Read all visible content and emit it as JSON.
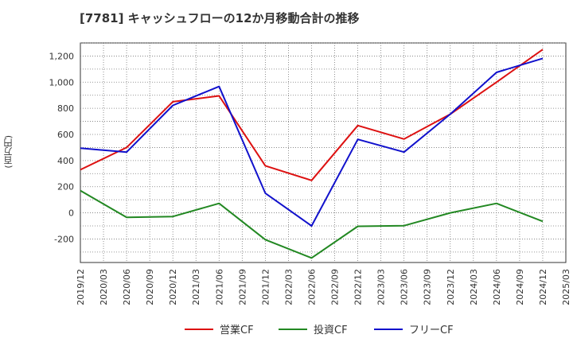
{
  "chart_data": {
    "type": "line",
    "title": "[7781]  キャッシュフローの12か月移動合計の推移",
    "ylabel": "(百万円)",
    "xlabel": "",
    "ylim": [
      -380,
      1300
    ],
    "y_ticks": [
      -200,
      0,
      200,
      400,
      600,
      800,
      1000,
      1200
    ],
    "y_tick_labels": [
      "-200",
      "0",
      "200",
      "400",
      "600",
      "800",
      "1,000",
      "1,200"
    ],
    "x_tick_labels": [
      "2019/12",
      "2020/03",
      "2020/06",
      "2020/09",
      "2020/12",
      "2021/03",
      "2021/06",
      "2021/09",
      "2021/12",
      "2022/03",
      "2022/06",
      "2022/09",
      "2022/12",
      "2023/03",
      "2023/06",
      "2023/09",
      "2023/12",
      "2024/03",
      "2024/06",
      "2024/09",
      "2024/12",
      "2025/03"
    ],
    "grid": true,
    "legend_position": "bottom",
    "series": [
      {
        "name": "営業CF",
        "color": "#dd1111",
        "points": [
          [
            "2019/12",
            330
          ],
          [
            "2020/06",
            500
          ],
          [
            "2020/12",
            850
          ],
          [
            "2021/06",
            895
          ],
          [
            "2021/12",
            360
          ],
          [
            "2022/06",
            248
          ],
          [
            "2022/12",
            668
          ],
          [
            "2023/06",
            565
          ],
          [
            "2023/12",
            755
          ],
          [
            "2024/06",
            1000
          ],
          [
            "2024/12",
            1250
          ]
        ]
      },
      {
        "name": "投資CF",
        "color": "#228822",
        "points": [
          [
            "2019/12",
            170
          ],
          [
            "2020/06",
            -35
          ],
          [
            "2020/12",
            -28
          ],
          [
            "2021/06",
            72
          ],
          [
            "2021/12",
            -205
          ],
          [
            "2022/06",
            -345
          ],
          [
            "2022/12",
            -103
          ],
          [
            "2023/06",
            -98
          ],
          [
            "2023/12",
            0
          ],
          [
            "2024/06",
            72
          ],
          [
            "2024/12",
            -65
          ]
        ]
      },
      {
        "name": "フリーCF",
        "color": "#1111cc",
        "points": [
          [
            "2019/12",
            495
          ],
          [
            "2020/06",
            465
          ],
          [
            "2020/12",
            822
          ],
          [
            "2021/06",
            967
          ],
          [
            "2021/12",
            150
          ],
          [
            "2022/06",
            -100
          ],
          [
            "2022/12",
            562
          ],
          [
            "2023/06",
            465
          ],
          [
            "2023/12",
            755
          ],
          [
            "2024/06",
            1075
          ],
          [
            "2024/12",
            1182
          ]
        ]
      }
    ]
  }
}
